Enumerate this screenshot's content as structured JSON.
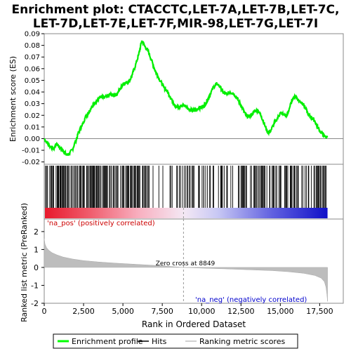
{
  "chart_data": {
    "type": "line",
    "title_line1": "Enrichment plot: CTACCTC,LET-7A,LET-7B,LET-7C,",
    "title_line2": "LET-7D,LET-7E,LET-7F,MIR-98,LET-7G,LET-7I",
    "xlabel": "Rank in Ordered Dataset",
    "ylabel_top": "Enrichment score (ES)",
    "ylabel_bottom": "Ranked list metric (PreRanked)",
    "xlim": [
      0,
      19000
    ],
    "ylim_es": [
      -0.022,
      0.09
    ],
    "ylim_metric": [
      -2,
      2.7
    ],
    "x_ticks": [
      {
        "value": 0,
        "label": "0"
      },
      {
        "value": 2500,
        "label": "2,500"
      },
      {
        "value": 5000,
        "label": "5,000"
      },
      {
        "value": 7500,
        "label": "7,500"
      },
      {
        "value": 10000,
        "label": "10,000"
      },
      {
        "value": 12500,
        "label": "12,500"
      },
      {
        "value": 15000,
        "label": "15,000"
      },
      {
        "value": 17500,
        "label": "17,500"
      }
    ],
    "es_ticks": [
      {
        "value": -0.02,
        "label": "-0.02"
      },
      {
        "value": -0.01,
        "label": "-0.01"
      },
      {
        "value": 0.0,
        "label": "0.00"
      },
      {
        "value": 0.01,
        "label": "0.01"
      },
      {
        "value": 0.02,
        "label": "0.02"
      },
      {
        "value": 0.03,
        "label": "0.03"
      },
      {
        "value": 0.04,
        "label": "0.04"
      },
      {
        "value": 0.05,
        "label": "0.05"
      },
      {
        "value": 0.06,
        "label": "0.06"
      },
      {
        "value": 0.07,
        "label": "0.07"
      },
      {
        "value": 0.08,
        "label": "0.08"
      },
      {
        "value": 0.09,
        "label": "0.09"
      }
    ],
    "metric_ticks": [
      {
        "value": -2,
        "label": "-2"
      },
      {
        "value": -1,
        "label": "-1"
      },
      {
        "value": 0,
        "label": "0"
      },
      {
        "value": 1,
        "label": "1"
      },
      {
        "value": 2,
        "label": "2"
      }
    ],
    "series": [
      {
        "name": "Enrichment profile",
        "color": "#00ff00",
        "points": [
          [
            0,
            0.0
          ],
          [
            200,
            -0.004
          ],
          [
            400,
            -0.007
          ],
          [
            600,
            -0.009
          ],
          [
            800,
            -0.004
          ],
          [
            1000,
            -0.008
          ],
          [
            1200,
            -0.01
          ],
          [
            1400,
            -0.014
          ],
          [
            1600,
            -0.013
          ],
          [
            1800,
            -0.009
          ],
          [
            2000,
            -0.002
          ],
          [
            2200,
            0.006
          ],
          [
            2400,
            0.011
          ],
          [
            2600,
            0.018
          ],
          [
            2800,
            0.022
          ],
          [
            3000,
            0.027
          ],
          [
            3200,
            0.03
          ],
          [
            3400,
            0.034
          ],
          [
            3600,
            0.036
          ],
          [
            3800,
            0.035
          ],
          [
            4000,
            0.036
          ],
          [
            4200,
            0.038
          ],
          [
            4400,
            0.037
          ],
          [
            4600,
            0.038
          ],
          [
            4800,
            0.042
          ],
          [
            5000,
            0.047
          ],
          [
            5200,
            0.048
          ],
          [
            5400,
            0.049
          ],
          [
            5600,
            0.055
          ],
          [
            5800,
            0.063
          ],
          [
            6000,
            0.072
          ],
          [
            6200,
            0.084
          ],
          [
            6400,
            0.079
          ],
          [
            6600,
            0.075
          ],
          [
            6800,
            0.068
          ],
          [
            7000,
            0.06
          ],
          [
            7200,
            0.054
          ],
          [
            7400,
            0.049
          ],
          [
            7600,
            0.044
          ],
          [
            7800,
            0.041
          ],
          [
            8000,
            0.036
          ],
          [
            8200,
            0.031
          ],
          [
            8400,
            0.027
          ],
          [
            8600,
            0.027
          ],
          [
            8800,
            0.029
          ],
          [
            9000,
            0.028
          ],
          [
            9200,
            0.025
          ],
          [
            9400,
            0.024
          ],
          [
            9600,
            0.024
          ],
          [
            9800,
            0.026
          ],
          [
            10000,
            0.027
          ],
          [
            10200,
            0.029
          ],
          [
            10400,
            0.034
          ],
          [
            10600,
            0.04
          ],
          [
            10800,
            0.045
          ],
          [
            11000,
            0.047
          ],
          [
            11200,
            0.044
          ],
          [
            11400,
            0.039
          ],
          [
            11600,
            0.038
          ],
          [
            11800,
            0.04
          ],
          [
            12000,
            0.039
          ],
          [
            12200,
            0.036
          ],
          [
            12400,
            0.031
          ],
          [
            12600,
            0.026
          ],
          [
            12800,
            0.02
          ],
          [
            13000,
            0.019
          ],
          [
            13200,
            0.021
          ],
          [
            13400,
            0.024
          ],
          [
            13600,
            0.024
          ],
          [
            13800,
            0.019
          ],
          [
            14000,
            0.012
          ],
          [
            14200,
            0.005
          ],
          [
            14400,
            0.007
          ],
          [
            14600,
            0.013
          ],
          [
            14800,
            0.017
          ],
          [
            15000,
            0.022
          ],
          [
            15200,
            0.021
          ],
          [
            15400,
            0.019
          ],
          [
            15600,
            0.027
          ],
          [
            15800,
            0.035
          ],
          [
            16000,
            0.036
          ],
          [
            16200,
            0.032
          ],
          [
            16400,
            0.031
          ],
          [
            16600,
            0.026
          ],
          [
            16800,
            0.02
          ],
          [
            17000,
            0.018
          ],
          [
            17200,
            0.015
          ],
          [
            17400,
            0.009
          ],
          [
            17600,
            0.005
          ],
          [
            17800,
            0.002
          ],
          [
            18000,
            0.001
          ]
        ]
      }
    ],
    "legend": {
      "placement": "bottom",
      "entries": [
        {
          "label": "Enrichment profile",
          "color": "#00ff00",
          "kind": "line"
        },
        {
          "label": "Hits",
          "color": "#000000",
          "kind": "line"
        },
        {
          "label": "Ranking metric scores",
          "color": "#c0c0c0",
          "kind": "line"
        }
      ]
    },
    "zero_cross": {
      "rank": 8849,
      "label": "Zero cross at 8849"
    },
    "pos_label": "'na_pos' (positively correlated)",
    "neg_label": "'na_neg' (negatively correlated)",
    "n_genes": 18000,
    "metric_profile": [
      [
        0,
        1.6
      ],
      [
        50,
        1.3
      ],
      [
        150,
        1.1
      ],
      [
        300,
        0.95
      ],
      [
        500,
        0.82
      ],
      [
        800,
        0.7
      ],
      [
        1200,
        0.58
      ],
      [
        1800,
        0.47
      ],
      [
        2500,
        0.38
      ],
      [
        3500,
        0.3
      ],
      [
        4500,
        0.24
      ],
      [
        5500,
        0.19
      ],
      [
        6500,
        0.14
      ],
      [
        7500,
        0.09
      ],
      [
        8849,
        0.0
      ],
      [
        10000,
        -0.04
      ],
      [
        11500,
        -0.08
      ],
      [
        13000,
        -0.13
      ],
      [
        14500,
        -0.18
      ],
      [
        15500,
        -0.24
      ],
      [
        16500,
        -0.33
      ],
      [
        17200,
        -0.45
      ],
      [
        17600,
        -0.6
      ],
      [
        17800,
        -0.8
      ],
      [
        17900,
        -1.1
      ],
      [
        17960,
        -1.5
      ],
      [
        18000,
        -1.9
      ]
    ],
    "hit_density": [
      {
        "start": 0,
        "end": 6300,
        "density": 0.85
      },
      {
        "start": 6300,
        "end": 8900,
        "density": 0.3
      },
      {
        "start": 8900,
        "end": 13200,
        "density": 0.55
      },
      {
        "start": 13200,
        "end": 16000,
        "density": 0.75
      },
      {
        "start": 16000,
        "end": 17200,
        "density": 0.5
      },
      {
        "start": 17200,
        "end": 17900,
        "density": 0.95
      }
    ],
    "colorbar_stops": [
      {
        "rank": 0,
        "color": "#e8192c"
      },
      {
        "rank": 3000,
        "color": "#f06070"
      },
      {
        "rank": 6000,
        "color": "#f8b0c0"
      },
      {
        "rank": 8849,
        "color": "#f4e8f4"
      },
      {
        "rank": 11000,
        "color": "#c8c8f4"
      },
      {
        "rank": 14500,
        "color": "#6060e0"
      },
      {
        "rank": 18000,
        "color": "#1010c8"
      }
    ]
  }
}
